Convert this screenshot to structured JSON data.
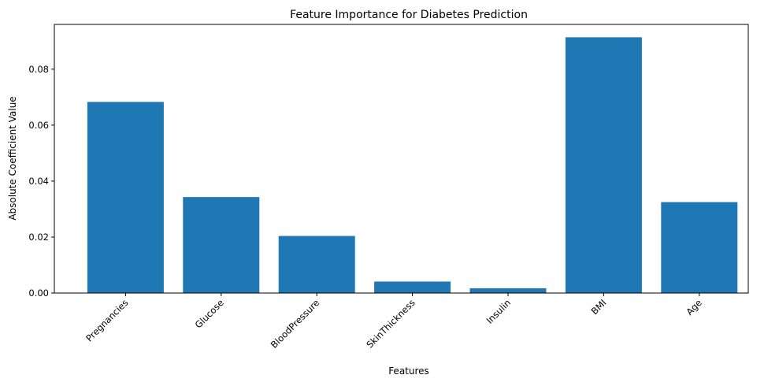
{
  "chart_data": {
    "type": "bar",
    "title": "Feature Importance for Diabetes Prediction",
    "xlabel": "Features",
    "ylabel": "Absolute Coefficient Value",
    "categories": [
      "Pregnancies",
      "Glucose",
      "BloodPressure",
      "SkinThickness",
      "Insulin",
      "BMI",
      "Age"
    ],
    "values": [
      0.0683,
      0.0343,
      0.0204,
      0.0041,
      0.0017,
      0.0914,
      0.0325
    ],
    "ylim": [
      0,
      0.096
    ],
    "yticks": [
      0.0,
      0.02,
      0.04,
      0.06,
      0.08
    ],
    "ytick_labels": [
      "0.00",
      "0.02",
      "0.04",
      "0.06",
      "0.08"
    ],
    "grid": false,
    "legend": "none",
    "bar_color": "#1f77b4"
  }
}
